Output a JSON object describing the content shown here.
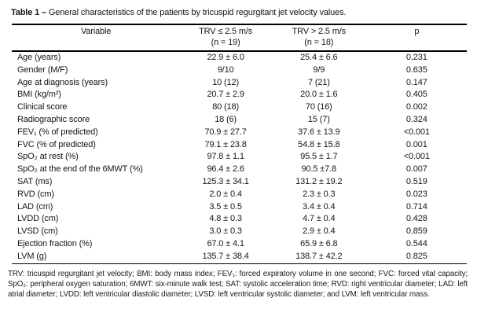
{
  "table": {
    "title_label": "Table 1 –",
    "title_text": "General characteristics of the patients by tricuspid regurgitant jet velocity values.",
    "columns": [
      {
        "header": "Variable",
        "sub": ""
      },
      {
        "header": "TRV ≤ 2.5 m/s",
        "sub": "(n = 19)"
      },
      {
        "header": "TRV > 2.5 m/s",
        "sub": "(n = 18)"
      },
      {
        "header": "p",
        "sub": ""
      }
    ],
    "rows": [
      {
        "variable": "Age (years)",
        "group1": "22.9 ± 6.0",
        "group2": "25.4 ± 6.6",
        "p": "0.231"
      },
      {
        "variable": "Gender (M/F)",
        "group1": "9/10",
        "group2": "9/9",
        "p": "0.635"
      },
      {
        "variable": "Age at diagnosis (years)",
        "group1": "10 (12)",
        "group2": "7 (21)",
        "p": "0.147"
      },
      {
        "variable": "BMI (kg/m²)",
        "group1": "20.7 ± 2.9",
        "group2": "20.0 ± 1.6",
        "p": "0.405"
      },
      {
        "variable": "Clinical score",
        "group1": "80 (18)",
        "group2": "70 (16)",
        "p": "0.002"
      },
      {
        "variable": "Radiographic score",
        "group1": "18 (6)",
        "group2": "15 (7)",
        "p": "0.324"
      },
      {
        "variable": "FEV₁ (% of predicted)",
        "group1": "70.9 ± 27.7",
        "group2": "37.6 ± 13.9",
        "p": "<0.001"
      },
      {
        "variable": "FVC (% of predicted)",
        "group1": "79.1 ± 23.8",
        "group2": "54.8 ± 15.8",
        "p": "0.001"
      },
      {
        "variable": "SpO₂ at rest (%)",
        "group1": "97.8 ± 1.1",
        "group2": "95.5 ± 1.7",
        "p": "<0.001"
      },
      {
        "variable": "SpO₂ at the end of the 6MWT (%)",
        "group1": "96.4 ± 2.6",
        "group2": "90.5 ±7.8",
        "p": "0.007"
      },
      {
        "variable": "SAT (ms)",
        "group1": "125.3 ± 34.1",
        "group2": "131.2 ± 19.2",
        "p": "0.519"
      },
      {
        "variable": "RVD (cm)",
        "group1": "2.0 ± 0.4",
        "group2": "2.3 ± 0.3",
        "p": "0.023"
      },
      {
        "variable": "LAD (cm)",
        "group1": "3.5 ± 0.5",
        "group2": "3.4 ± 0.4",
        "p": "0.714"
      },
      {
        "variable": "LVDD (cm)",
        "group1": "4.8 ± 0.3",
        "group2": "4.7 ± 0.4",
        "p": "0.428"
      },
      {
        "variable": "LVSD (cm)",
        "group1": "3.0 ± 0.3",
        "group2": "2.9 ± 0.4",
        "p": "0.859"
      },
      {
        "variable": "Ejection fraction (%)",
        "group1": "67.0 ± 4.1",
        "group2": "65.9 ± 6.8",
        "p": "0.544"
      },
      {
        "variable": "LVM (g)",
        "group1": "135.7 ± 38.4",
        "group2": "138.7 ± 42.2",
        "p": "0.825"
      }
    ],
    "footnote": "TRV: tricuspid regurgitant jet velocity; BMI: body mass index; FEV₁: forced expiratory volume in one second; FVC: forced vital capacity; SpO₂: peripheral oxygen saturation; 6MWT: six-minute walk test; SAT: systolic acceleration time; RVD: right ventricular diameter; LAD: left atrial diameter; LVDD: left ventricular diastolic diameter; LVSD: left ventricular systolic diameter; and LVM: left ventricular mass."
  }
}
